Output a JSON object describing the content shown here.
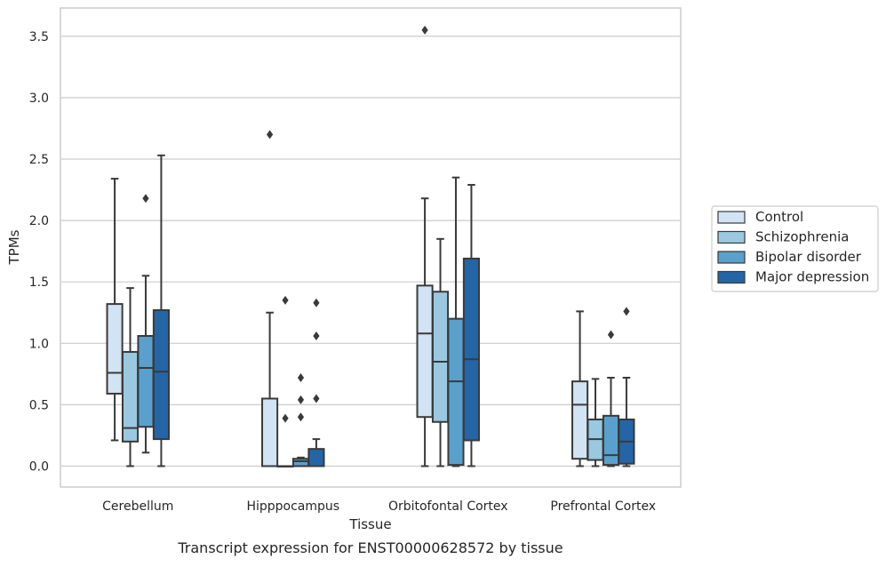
{
  "chart_data": {
    "type": "box",
    "xlabel": "Tissue",
    "ylabel": "TPMs",
    "caption": "Transcript expression for ENST00000628572 by tissue",
    "categories": [
      "Cerebellum",
      "Hipppocampus",
      "Orbitofontal Cortex",
      "Prefrontal Cortex"
    ],
    "yticks": [
      "0.0",
      "0.5",
      "1.0",
      "1.5",
      "2.0",
      "2.5",
      "3.0",
      "3.5"
    ],
    "ylim": [
      -0.17,
      3.73
    ],
    "grid": "horizontal",
    "legend_position": "right",
    "series": [
      {
        "name": "Control",
        "color": "#d2e3f3",
        "boxes": [
          {
            "q1": 0.59,
            "median": 0.76,
            "q3": 1.32,
            "whisker_low": 0.21,
            "whisker_high": 2.34,
            "outliers": []
          },
          {
            "q1": 0.0,
            "median": 0.0,
            "q3": 0.55,
            "whisker_low": 0.0,
            "whisker_high": 1.25,
            "outliers": [
              2.7
            ]
          },
          {
            "q1": 0.4,
            "median": 1.08,
            "q3": 1.47,
            "whisker_low": 0.0,
            "whisker_high": 2.18,
            "outliers": [
              3.55
            ]
          },
          {
            "q1": 0.06,
            "median": 0.5,
            "q3": 0.69,
            "whisker_low": 0.0,
            "whisker_high": 1.26,
            "outliers": []
          }
        ]
      },
      {
        "name": "Schizophrenia",
        "color": "#9ac8e0",
        "boxes": [
          {
            "q1": 0.2,
            "median": 0.31,
            "q3": 0.93,
            "whisker_low": 0.0,
            "whisker_high": 1.45,
            "outliers": []
          },
          {
            "q1": 0.0,
            "median": 0.0,
            "q3": 0.0,
            "whisker_low": 0.0,
            "whisker_high": 0.0,
            "outliers": [
              0.39,
              1.35
            ]
          },
          {
            "q1": 0.36,
            "median": 0.85,
            "q3": 1.42,
            "whisker_low": 0.0,
            "whisker_high": 1.85,
            "outliers": []
          },
          {
            "q1": 0.05,
            "median": 0.22,
            "q3": 0.38,
            "whisker_low": 0.0,
            "whisker_high": 0.71,
            "outliers": []
          }
        ]
      },
      {
        "name": "Bipolar disorder",
        "color": "#5aa0cd",
        "boxes": [
          {
            "q1": 0.32,
            "median": 0.8,
            "q3": 1.06,
            "whisker_low": 0.11,
            "whisker_high": 1.55,
            "outliers": [
              2.18
            ]
          },
          {
            "q1": 0.0,
            "median": 0.04,
            "q3": 0.06,
            "whisker_low": 0.0,
            "whisker_high": 0.07,
            "outliers": [
              0.4,
              0.54,
              0.72
            ]
          },
          {
            "q1": 0.01,
            "median": 0.69,
            "q3": 1.2,
            "whisker_low": 0.0,
            "whisker_high": 2.35,
            "outliers": []
          },
          {
            "q1": 0.01,
            "median": 0.09,
            "q3": 0.41,
            "whisker_low": 0.0,
            "whisker_high": 0.72,
            "outliers": [
              1.07
            ]
          }
        ]
      },
      {
        "name": "Major depression",
        "color": "#2465a7",
        "boxes": [
          {
            "q1": 0.22,
            "median": 0.77,
            "q3": 1.27,
            "whisker_low": 0.0,
            "whisker_high": 2.53,
            "outliers": []
          },
          {
            "q1": 0.0,
            "median": 0.0,
            "q3": 0.14,
            "whisker_low": 0.0,
            "whisker_high": 0.22,
            "outliers": [
              0.55,
              1.06,
              1.33
            ]
          },
          {
            "q1": 0.21,
            "median": 0.87,
            "q3": 1.69,
            "whisker_low": 0.0,
            "whisker_high": 2.29,
            "outliers": []
          },
          {
            "q1": 0.02,
            "median": 0.2,
            "q3": 0.38,
            "whisker_low": 0.0,
            "whisker_high": 0.72,
            "outliers": [
              1.26
            ]
          }
        ]
      }
    ]
  }
}
